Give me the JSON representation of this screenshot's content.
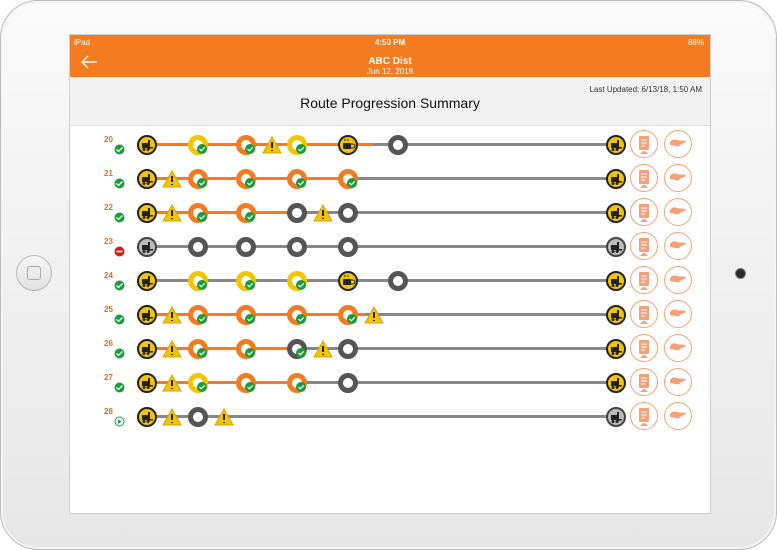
{
  "device": {
    "carrier": "iPad",
    "time": "4:50 PM",
    "battery": "88%"
  },
  "header": {
    "title": "ABC Dist",
    "date": "Jun 12, 2018"
  },
  "summary": {
    "last_updated": "Last Updated: 6/13/18, 1:50 AM",
    "title": "Route Progression Summary"
  },
  "colors": {
    "orange": "#f47b20",
    "yellow": "#f2c500",
    "gray": "#555555",
    "green": "#1a9c3e",
    "red": "#d11f1f"
  },
  "routes": [
    {
      "id": "20",
      "status": "ok"
    },
    {
      "id": "21",
      "status": "ok"
    },
    {
      "id": "22",
      "status": "ok"
    },
    {
      "id": "23",
      "status": "blocked"
    },
    {
      "id": "24",
      "status": "ok"
    },
    {
      "id": "25",
      "status": "ok"
    },
    {
      "id": "26",
      "status": "ok"
    },
    {
      "id": "27",
      "status": "ok"
    },
    {
      "id": "28",
      "status": "in-progress"
    }
  ]
}
